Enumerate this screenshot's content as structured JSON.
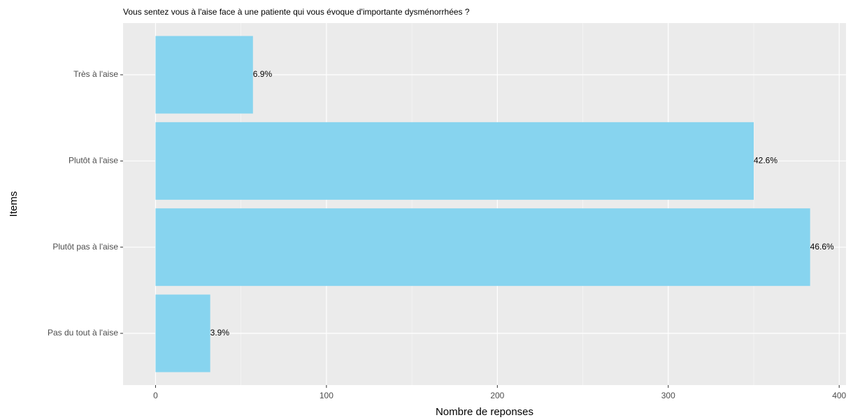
{
  "chart_data": {
    "type": "hbar",
    "title": "Vous sentez vous à l'aise face à une patiente qui vous évoque d'importante dysménorrhées ?",
    "x_label": "Nombre de reponses",
    "y_label": "Items",
    "categories": [
      "Très à l'aise",
      "Plutôt à l'aise",
      "Plutôt pas à l'aise",
      "Pas du tout à l'aise"
    ],
    "values": [
      57,
      350,
      383,
      32
    ],
    "bar_labels": [
      "6.9%",
      "42.6%",
      "46.6%",
      "3.9%"
    ],
    "color": "#87d4ef",
    "xlim": [
      -19,
      404
    ],
    "xticks": [
      0,
      100,
      200,
      300,
      400
    ],
    "x_minor_ticks": [
      50,
      150,
      250,
      350
    ],
    "grid": true
  }
}
